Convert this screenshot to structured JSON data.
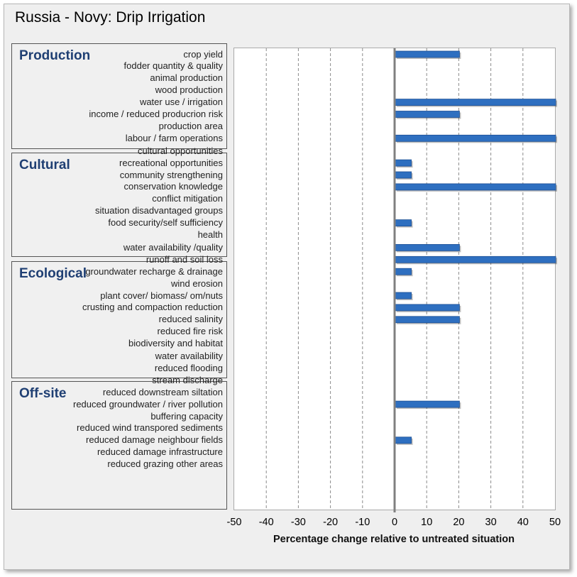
{
  "colors": {
    "bar": "#2e6fc0",
    "bar_dark": "#1c4f94",
    "zero_line": "#808080",
    "group_title": "#1f3f73"
  },
  "chart_data": {
    "type": "bar",
    "orientation": "horizontal",
    "title": "Russia - Novy: Drip Irrigation",
    "xlabel": "Percentage change relative to untreated situation",
    "xlim": [
      -50,
      50
    ],
    "x_ticks": [
      "-50",
      "-40",
      "-30",
      "-20",
      "-10",
      "0",
      "10",
      "20",
      "30",
      "40",
      "50"
    ],
    "grid": "vertical dashed",
    "groups": [
      {
        "name": "Production",
        "items": [
          {
            "label": "crop yield",
            "value": 20
          },
          {
            "label": "fodder quantity & quality",
            "value": 0
          },
          {
            "label": "animal production",
            "value": 0
          },
          {
            "label": "wood production",
            "value": 0
          },
          {
            "label": "water use / irrigation",
            "value": 50
          },
          {
            "label": "income / reduced producrion risk",
            "value": 20
          },
          {
            "label": "production area",
            "value": 0
          },
          {
            "label": "labour / farm operations",
            "value": 50
          }
        ]
      },
      {
        "name": "Cultural",
        "items": [
          {
            "label": "cultural opportunities",
            "value": 0
          },
          {
            "label": "recreational opportunities",
            "value": 5
          },
          {
            "label": "community strengthening",
            "value": 5
          },
          {
            "label": "conservation knowledge",
            "value": 50
          },
          {
            "label": "conflict mitigation",
            "value": 0
          },
          {
            "label": "situation disadvantaged groups",
            "value": 0
          },
          {
            "label": "food security/self sufficiency",
            "value": 5
          },
          {
            "label": "health",
            "value": 0
          }
        ]
      },
      {
        "name": "Ecological",
        "items": [
          {
            "label": "water availability /quality",
            "value": 20
          },
          {
            "label": "runoff and soil loss",
            "value": 50
          },
          {
            "label": "groundwater recharge & drainage",
            "value": 5
          },
          {
            "label": "wind erosion",
            "value": 0
          },
          {
            "label": "plant cover/ biomass/ om/nuts",
            "value": 5
          },
          {
            "label": "crusting and compaction reduction",
            "value": 20
          },
          {
            "label": "reduced salinity",
            "value": 20
          },
          {
            "label": "reduced fire risk",
            "value": 0
          },
          {
            "label": "biodiversity and habitat",
            "value": 0
          }
        ]
      },
      {
        "name": "Off-site",
        "items": [
          {
            "label": "water availability",
            "value": 0
          },
          {
            "label": "reduced flooding",
            "value": 0
          },
          {
            "label": "stream discharge",
            "value": 0
          },
          {
            "label": "reduced downstream siltation",
            "value": 0
          },
          {
            "label": "reduced groundwater / river pollution",
            "value": 20
          },
          {
            "label": "buffering capacity",
            "value": 0
          },
          {
            "label": "reduced wind transpored sediments",
            "value": 0
          },
          {
            "label": "reduced damage neighbour fields",
            "value": 5
          },
          {
            "label": "reduced damage infrastructure",
            "value": 0
          },
          {
            "label": "reduced grazing other areas",
            "value": 0
          }
        ]
      }
    ]
  }
}
